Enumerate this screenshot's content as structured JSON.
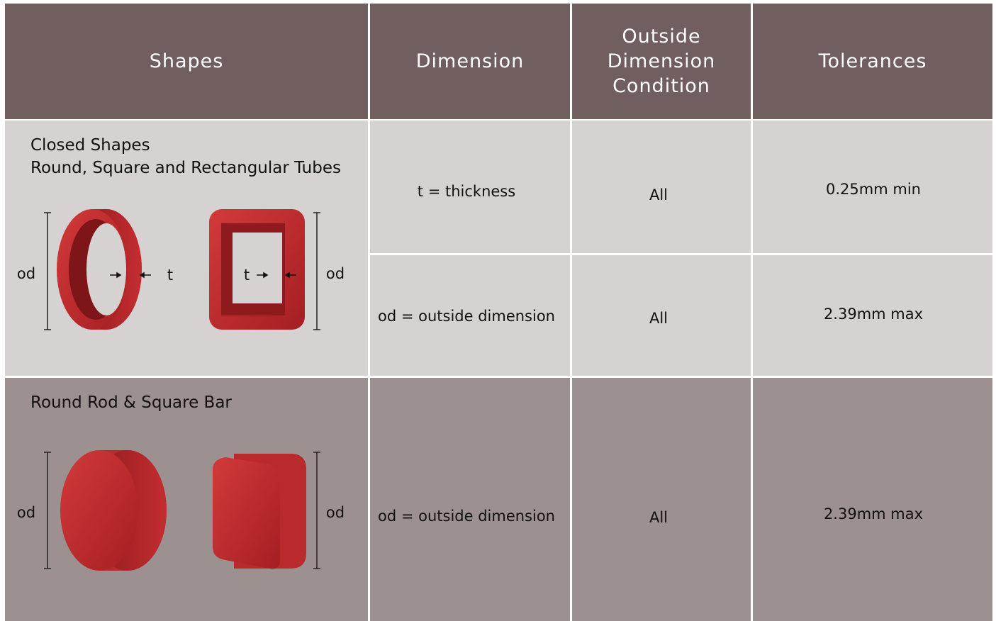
{
  "header": [
    "Shapes",
    "Dimension",
    "Outside Dimension Condition",
    "Tolerances"
  ],
  "sections": [
    {
      "title": [
        "Closed Shapes",
        "Round, Square and Rectangular Tubes"
      ],
      "figure_labels": [
        "od",
        "t",
        "t",
        "od"
      ],
      "rows": [
        {
          "dimension": "t = thickness",
          "condition": "All",
          "tolerance": "0.25mm min"
        },
        {
          "dimension": "od = outside dimension",
          "condition": "All",
          "tolerance": "2.39mm max"
        }
      ]
    },
    {
      "title": [
        "Round Rod & Square Bar"
      ],
      "figure_labels": [
        "od",
        "od"
      ],
      "rows": [
        {
          "dimension": "od = outside dimension",
          "condition": "All",
          "tolerance": "2.39mm max"
        }
      ]
    }
  ]
}
